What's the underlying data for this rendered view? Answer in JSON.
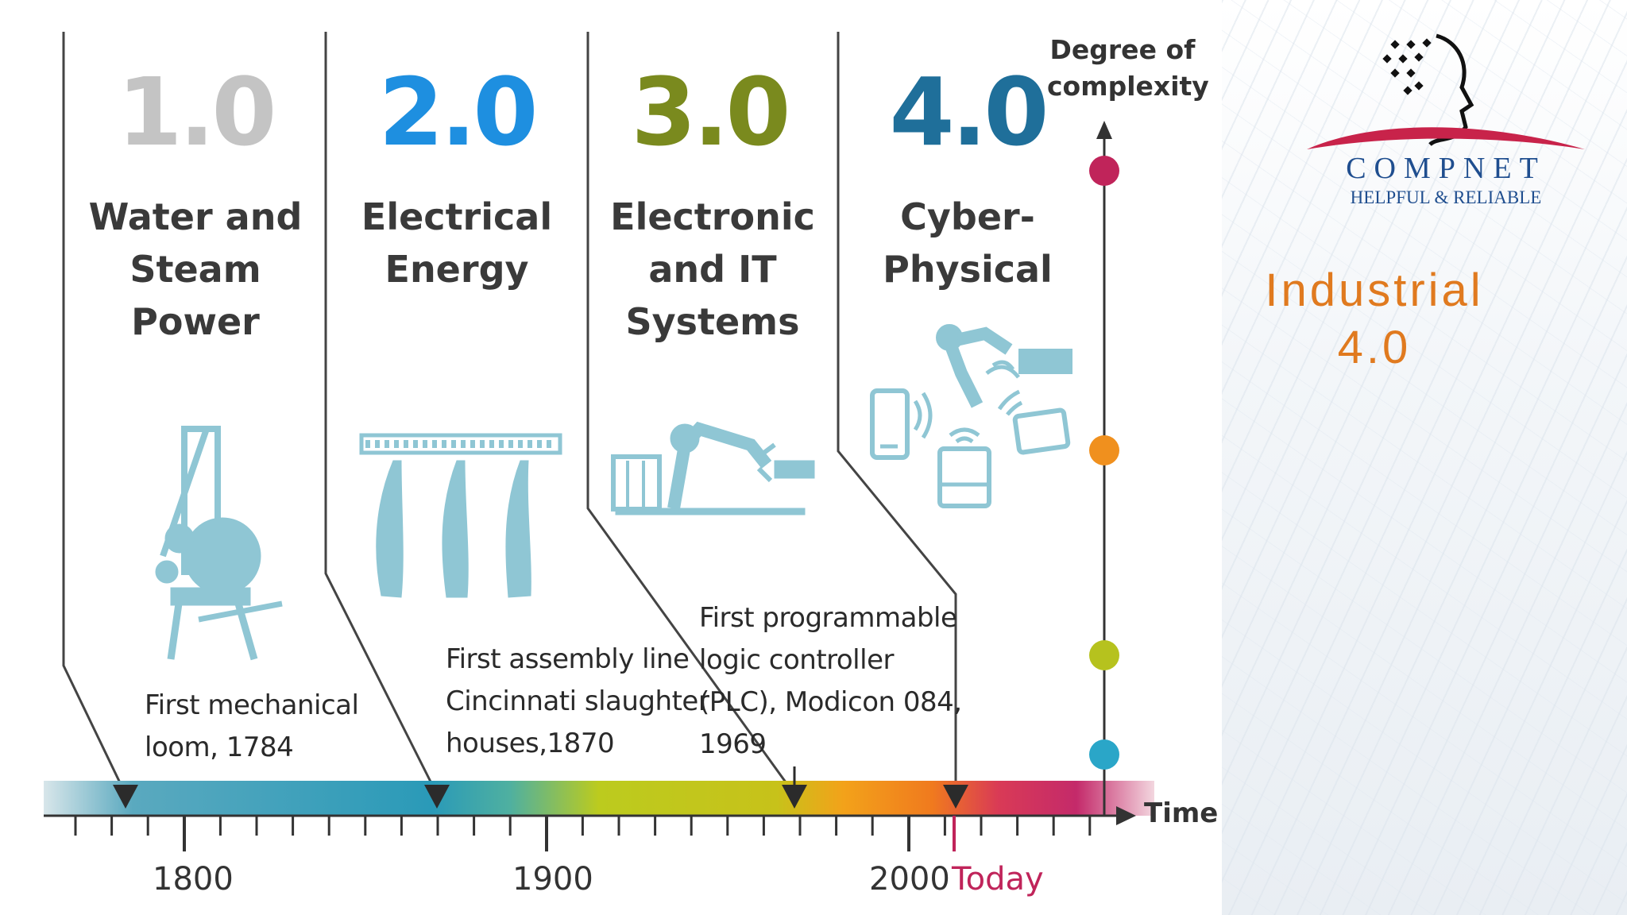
{
  "eras": [
    {
      "number": "1.0",
      "title": [
        "Water and",
        "Steam",
        "Power"
      ],
      "color": "#c4c4c4"
    },
    {
      "number": "2.0",
      "title": [
        "Electrical",
        "Energy"
      ],
      "color": "#1e8fe0"
    },
    {
      "number": "3.0",
      "title": [
        "Electronic",
        "and IT",
        "Systems"
      ],
      "color": "#7a8a1e"
    },
    {
      "number": "4.0",
      "title": [
        "Cyber-",
        "Physical"
      ],
      "color": "#1f6f9a"
    }
  ],
  "events": [
    {
      "lines": [
        "First mechanical",
        "loom, 1784"
      ]
    },
    {
      "lines": [
        "First assembly line",
        "Cincinnati slaughter",
        "houses,1870"
      ]
    },
    {
      "lines": [
        "First programmable",
        "logic controller",
        "(PLC), Modicon 084,",
        "1969"
      ]
    }
  ],
  "axis": {
    "y_label": [
      "Degree of",
      "complexity"
    ],
    "x_label": "Time",
    "ticks": [
      "1800",
      "1900",
      "2000"
    ],
    "today_label": "Today",
    "today_color": "#c0245a"
  },
  "complexity_markers": [
    {
      "color": "#c0245a"
    },
    {
      "color": "#f0901e"
    },
    {
      "color": "#b6c21e"
    },
    {
      "color": "#2aa6c8"
    }
  ],
  "brand": {
    "name": "COMPNET",
    "tagline": "HELPFUL & RELIABLE"
  },
  "slide_title": [
    "Industrial",
    "4.0"
  ],
  "icon_color": "#8fc6d4"
}
